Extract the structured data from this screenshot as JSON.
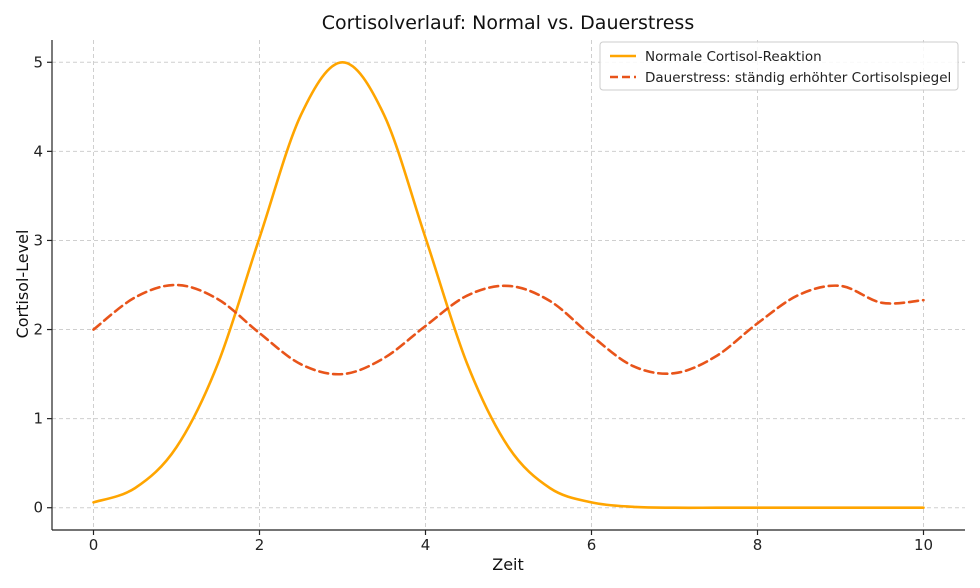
{
  "chart_data": {
    "type": "line",
    "title": "Cortisolverlauf: Normal vs. Dauerstress",
    "xlabel": "Zeit",
    "ylabel": "Cortisol-Level",
    "xlim": [
      -0.5,
      10.5
    ],
    "ylim": [
      -0.25,
      5.25
    ],
    "xticks": [
      0,
      2,
      4,
      6,
      8,
      10
    ],
    "yticks": [
      0,
      1,
      2,
      3,
      4,
      5
    ],
    "xtick_labels": [
      "0",
      "2",
      "4",
      "6",
      "8",
      "10"
    ],
    "ytick_labels": [
      "0",
      "1",
      "2",
      "3",
      "4",
      "5"
    ],
    "grid": true,
    "legend_position": "top-right",
    "x": [
      0,
      0.5,
      1,
      1.5,
      2,
      2.5,
      3,
      3.5,
      4,
      4.5,
      5,
      5.5,
      6,
      6.5,
      7,
      7.5,
      8,
      8.5,
      9,
      9.5,
      10
    ],
    "series": [
      {
        "name": "Normale Cortisol-Reaktion",
        "color": "#FFA500",
        "style": "solid",
        "values": [
          0.06,
          0.22,
          0.68,
          1.62,
          3.03,
          4.41,
          5.0,
          4.41,
          3.03,
          1.62,
          0.68,
          0.22,
          0.06,
          0.01,
          0.0,
          0.0,
          0.0,
          0.0,
          0.0,
          0.0,
          0.0
        ]
      },
      {
        "name": "Dauerstress: ständig erhöhter Cortisolspiegel",
        "color": "#E8541A",
        "style": "dashed",
        "values": [
          2.0,
          2.36,
          2.5,
          2.34,
          1.96,
          1.61,
          1.5,
          1.68,
          2.04,
          2.38,
          2.49,
          2.32,
          1.93,
          1.59,
          1.51,
          1.7,
          2.07,
          2.39,
          2.49,
          2.3,
          2.33
        ]
      }
    ]
  }
}
